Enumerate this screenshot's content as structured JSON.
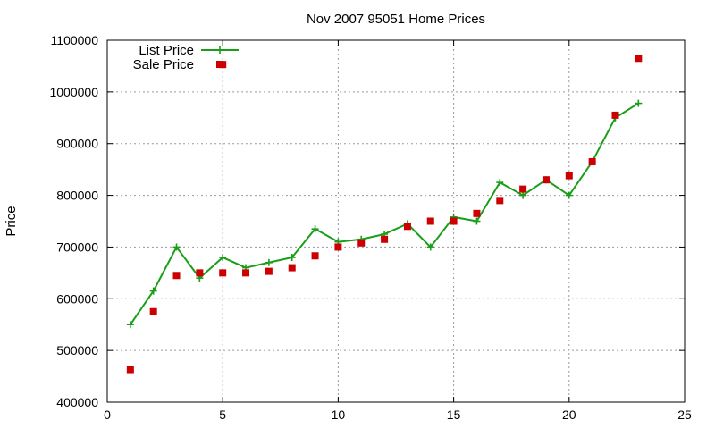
{
  "chart_data": {
    "type": "line",
    "title": "Nov 2007 95051 Home Prices",
    "xlabel": "",
    "ylabel": "Price",
    "xlim": [
      0,
      25
    ],
    "ylim": [
      400000,
      1100000
    ],
    "x_ticks": [
      "0",
      "5",
      "10",
      "15",
      "20",
      "25"
    ],
    "y_ticks": [
      "400000",
      "500000",
      "600000",
      "700000",
      "800000",
      "900000",
      "1000000",
      "1100000"
    ],
    "grid": true,
    "legend_position": "top-left",
    "series": [
      {
        "name": "List Price",
        "mark": "line+cross",
        "color": "#1a9e1a",
        "x": [
          1,
          2,
          3,
          4,
          5,
          6,
          7,
          8,
          9,
          10,
          11,
          12,
          13,
          14,
          15,
          16,
          17,
          18,
          19,
          20,
          21,
          22,
          23
        ],
        "y": [
          550000,
          615000,
          700000,
          640000,
          680000,
          660000,
          670000,
          680000,
          735000,
          710000,
          715000,
          725000,
          745000,
          700000,
          758000,
          750000,
          825000,
          800000,
          830000,
          800000,
          865000,
          950000,
          978000
        ]
      },
      {
        "name": "Sale Price",
        "mark": "square",
        "color": "#cc0000",
        "x": [
          1,
          2,
          3,
          4,
          5,
          5,
          6,
          7,
          8,
          9,
          10,
          11,
          12,
          13,
          14,
          15,
          16,
          17,
          18,
          19,
          20,
          21,
          22,
          23
        ],
        "y": [
          463000,
          575000,
          645000,
          650000,
          650000,
          1053000,
          650000,
          653000,
          660000,
          683000,
          700000,
          708000,
          715000,
          740000,
          750000,
          750000,
          765000,
          790000,
          812000,
          830000,
          838000,
          865000,
          955000,
          1065000
        ]
      }
    ]
  }
}
